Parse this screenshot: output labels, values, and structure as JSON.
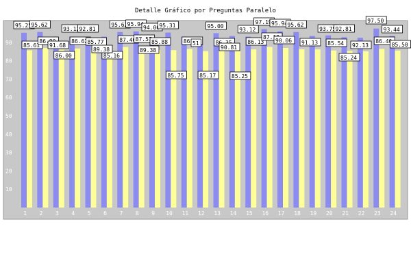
{
  "chart_data": {
    "type": "bar",
    "title": "Detalle Gráfico por Preguntas Paralelo",
    "xlabel": "",
    "ylabel": "",
    "ylim": [
      0,
      100
    ],
    "y_ticks": [
      10,
      20,
      30,
      40,
      50,
      60,
      70,
      80,
      90
    ],
    "grid": false,
    "legend": "none",
    "categories": [
      "1",
      "2",
      "3",
      "4",
      "5",
      "6",
      "7",
      "8",
      "9",
      "10",
      "11",
      "12",
      "13",
      "14",
      "15",
      "16",
      "17",
      "18",
      "19",
      "20",
      "21",
      "22",
      "23",
      "24"
    ],
    "series": [
      {
        "values": [
          95.25,
          95.62,
          93.12,
          93.12,
          92.81,
          93.12,
          95.62,
          95.94,
          94.06,
          95.31,
          93.12,
          92.5,
          95.0,
          93.44,
          93.12,
          97.19,
          95.94,
          95.62,
          93.44,
          93.75,
          92.81,
          92.5,
          97.5,
          93.44
        ],
        "labels": [
          "95.25",
          "95.62",
          "",
          "93.12",
          "92.81",
          "",
          "95.62",
          "95.94",
          "94.06",
          "95.31",
          "",
          "",
          "95.00",
          "",
          "93.12",
          "97.19",
          "95.94",
          "95.62",
          "",
          "93.75",
          "92.81",
          "",
          "97.50",
          "93.44"
        ],
        "color": "#8c8cf0"
      },
      {
        "values": [
          85.61,
          86.9,
          86.0,
          86.62,
          85.77,
          85.16,
          87.46,
          87.57,
          85.88,
          85.75,
          86.36,
          85.17,
          86.35,
          85.25,
          86.13,
          87.5,
          86.96,
          86.2,
          86.13,
          85.54,
          85.24,
          85.13,
          86.4,
          85.5
        ],
        "labels": [
          "85.61",
          "86.90",
          "86.00",
          "86.62",
          "85.77",
          "85.16",
          "87.46",
          "87.57",
          "85.88",
          "85.75",
          "86.36",
          "85.17",
          "86.35",
          "85.25",
          "86.13",
          "",
          "",
          "",
          "",
          "85.54",
          "",
          "",
          "86.40",
          "85.50"
        ],
        "color": "#ffff99"
      }
    ],
    "extra_labels": [
      {
        "index": 1,
        "series": 1,
        "text": "91.68"
      },
      {
        "index": 5,
        "series": 1,
        "text": "89.38"
      },
      {
        "index": 8,
        "series": 1,
        "text": "89.38"
      },
      {
        "index": 11,
        "series": 0,
        "text": "51"
      },
      {
        "index": 13,
        "series": 0,
        "text": "90.81"
      },
      {
        "index": 15,
        "series": 1,
        "text": "87.19"
      },
      {
        "index": 16,
        "series": 1,
        "text": "90.06"
      },
      {
        "index": 18,
        "series": 1,
        "text": "91.13"
      },
      {
        "index": 21,
        "series": 1,
        "text": "92.13"
      },
      {
        "index": 20,
        "series": 1,
        "text": "85.24"
      }
    ]
  },
  "colors": {
    "plot_background": "#c8c8c8",
    "series_a": "#8c8cf0",
    "series_b": "#ffff99",
    "tick_text": "#ffffff",
    "label_box": "#ffffff"
  }
}
